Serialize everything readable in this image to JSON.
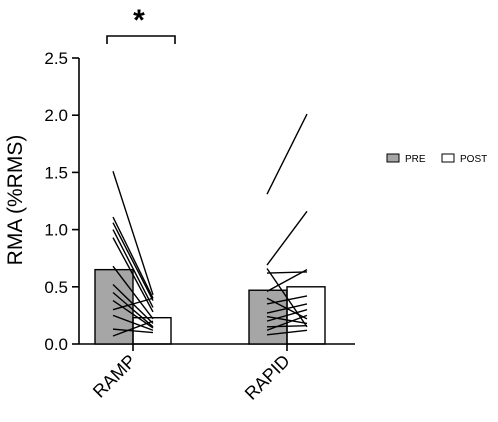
{
  "chart_data": {
    "type": "bar",
    "ylabel": "RMA (%RMS)",
    "ylim": [
      0,
      2.5
    ],
    "yticks": [
      "0.0",
      "0.5",
      "1.0",
      "1.5",
      "2.0",
      "2.5"
    ],
    "categories": [
      "RAMP",
      "RAPID"
    ],
    "series": [
      {
        "name": "PRE",
        "color": "#a6a6a6",
        "values": [
          0.65,
          0.47
        ]
      },
      {
        "name": "POST",
        "color": "#ffffff",
        "values": [
          0.23,
          0.5
        ]
      }
    ],
    "individual_lines": [
      [
        [
          1.51,
          0.43
        ],
        [
          1.11,
          0.4
        ],
        [
          1.06,
          0.38
        ],
        [
          1.0,
          0.32
        ],
        [
          0.93,
          0.28
        ],
        [
          0.68,
          0.22
        ],
        [
          0.52,
          0.18
        ],
        [
          0.45,
          0.15
        ],
        [
          0.38,
          0.14
        ],
        [
          0.3,
          0.4
        ],
        [
          0.25,
          0.12
        ],
        [
          0.13,
          0.1
        ],
        [
          0.07,
          0.2
        ]
      ],
      [
        [
          1.31,
          2.01
        ],
        [
          0.69,
          1.16
        ],
        [
          0.66,
          0.15
        ],
        [
          0.62,
          0.63
        ],
        [
          0.46,
          0.65
        ],
        [
          0.4,
          0.22
        ],
        [
          0.35,
          0.42
        ],
        [
          0.27,
          0.35
        ],
        [
          0.24,
          0.18
        ],
        [
          0.2,
          0.3
        ],
        [
          0.15,
          0.16
        ],
        [
          0.12,
          0.25
        ],
        [
          0.08,
          0.12
        ]
      ]
    ],
    "significance": {
      "category": "RAMP",
      "symbol": "*"
    },
    "legend": {
      "placement": "right",
      "entries": [
        "PRE",
        "POST"
      ]
    },
    "grid": false
  }
}
